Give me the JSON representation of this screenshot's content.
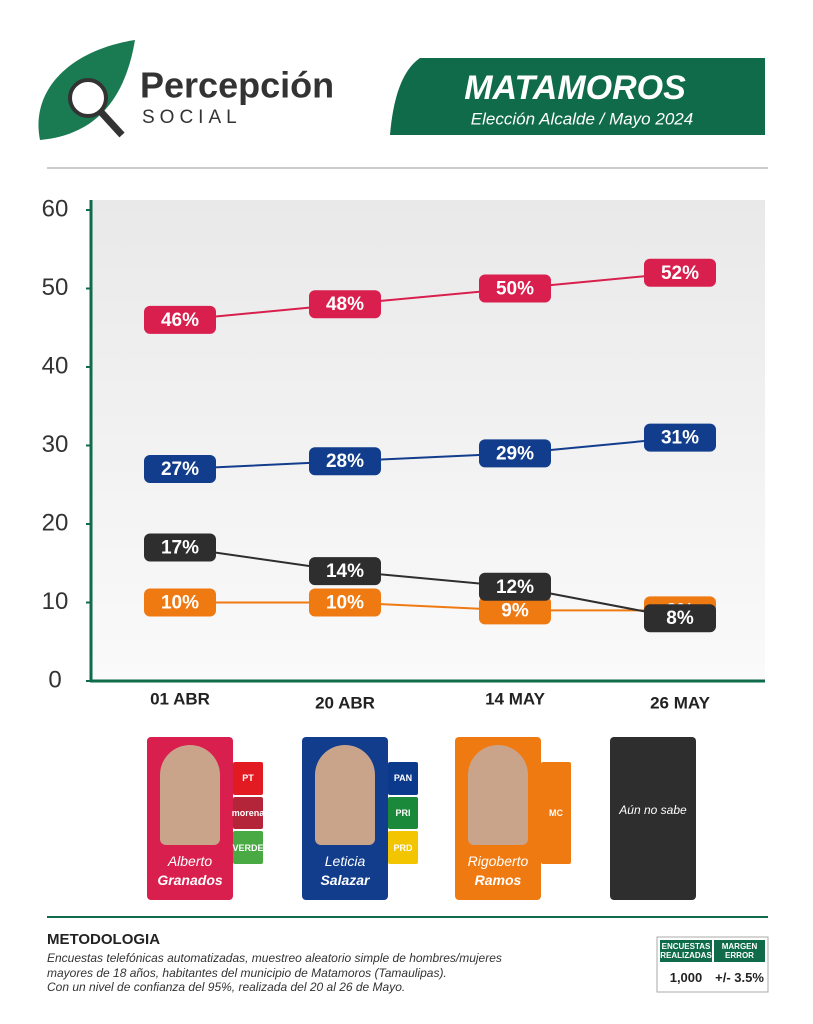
{
  "header": {
    "brand": "Percepción",
    "brand_sub": "SOCIAL",
    "city": "MATAMOROS",
    "subtitle": "Elección Alcalde / Mayo 2024"
  },
  "chart_data": {
    "type": "line",
    "categories": [
      "01 ABR",
      "20 ABR",
      "14 MAY",
      "26 MAY"
    ],
    "ylim": [
      0,
      60
    ],
    "yticks": [
      0,
      10,
      20,
      30,
      40,
      50,
      60
    ],
    "series": [
      {
        "name": "Alberto Granados",
        "color": "#d81f4e",
        "values": [
          46,
          48,
          50,
          52
        ],
        "value_labels": [
          "46%",
          "48%",
          "50%",
          "52%"
        ]
      },
      {
        "name": "Leticia Salazar",
        "color": "#123d8c",
        "values": [
          27,
          28,
          29,
          31
        ],
        "value_labels": [
          "27%",
          "28%",
          "29%",
          "31%"
        ]
      },
      {
        "name": "Rigoberto Ramos",
        "color": "#f07a12",
        "values": [
          10,
          10,
          9,
          9
        ],
        "value_labels": [
          "10%",
          "10%",
          "9%",
          "9%"
        ]
      },
      {
        "name": "Aún no sabe",
        "color": "#2e2e2e",
        "values": [
          17,
          14,
          12,
          8
        ],
        "value_labels": [
          "17%",
          "14%",
          "12%",
          "8%"
        ]
      }
    ]
  },
  "candidates": [
    {
      "parties": [
        "PT",
        "morena",
        "VERDE"
      ]
    },
    {
      "parties": [
        "PAN",
        "PRI",
        "PRD"
      ]
    },
    {
      "parties": [
        "MC"
      ]
    },
    {
      "parties": []
    }
  ],
  "methodology": {
    "title": "METODOLOGIA",
    "lines": [
      "Encuestas telefónicas automatizadas, muestreo aleatorio simple de hombres/mujeres",
      "mayores de 18 años, habitantes del municipio de Matamoros (Tamaulipas).",
      "Con un nivel de confianza del 95%, realizada del 20 al 26 de Mayo."
    ],
    "table": {
      "headers": [
        "ENCUESTAS REALIZADAS",
        "MARGEN ERROR"
      ],
      "values": [
        "1,000",
        "+/- 3.5%"
      ]
    }
  }
}
